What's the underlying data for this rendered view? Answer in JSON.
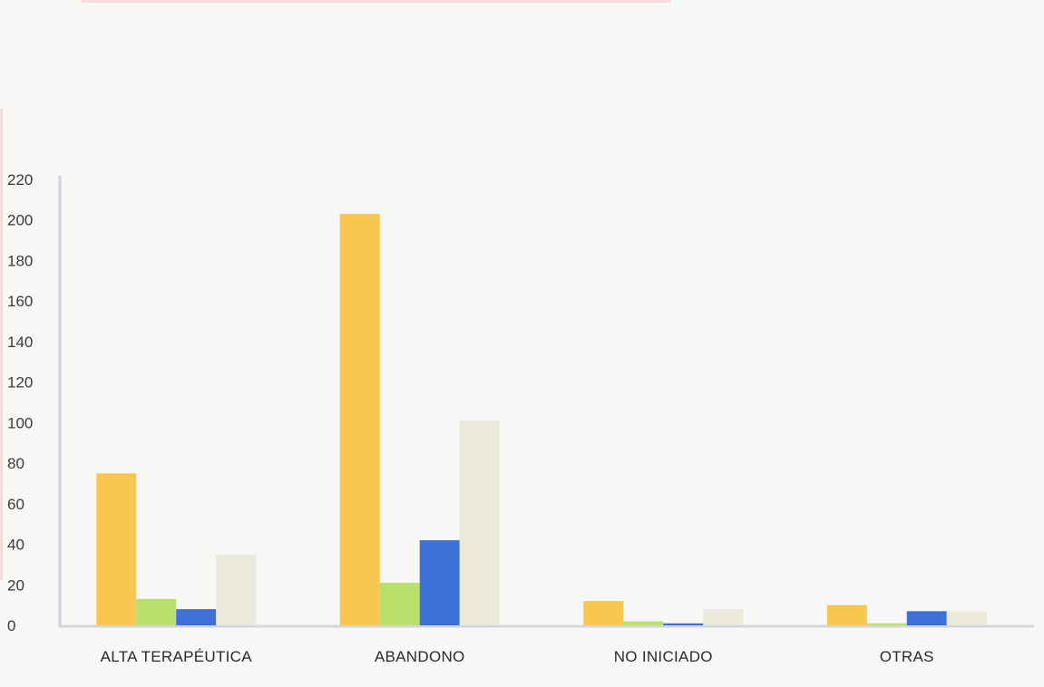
{
  "chart_data": {
    "type": "bar",
    "categories": [
      "ALTA TERAPÉUTICA",
      "ABANDONO",
      "NO INICIADO",
      "OTRAS"
    ],
    "series": [
      {
        "values": [
          75,
          203,
          12,
          10
        ],
        "color": "#f9c74f"
      },
      {
        "values": [
          13,
          21,
          2,
          1
        ],
        "color": "#b8e06a"
      },
      {
        "values": [
          8,
          42,
          1,
          7
        ],
        "color": "#3f6fd8"
      },
      {
        "values": [
          35,
          101,
          8,
          7
        ],
        "color": "#ebe9d8"
      }
    ],
    "ylim": [
      0,
      220
    ],
    "yticks": [
      0,
      20,
      40,
      60,
      80,
      100,
      120,
      140,
      160,
      180,
      200,
      220
    ],
    "grid": false,
    "legend": "none"
  }
}
